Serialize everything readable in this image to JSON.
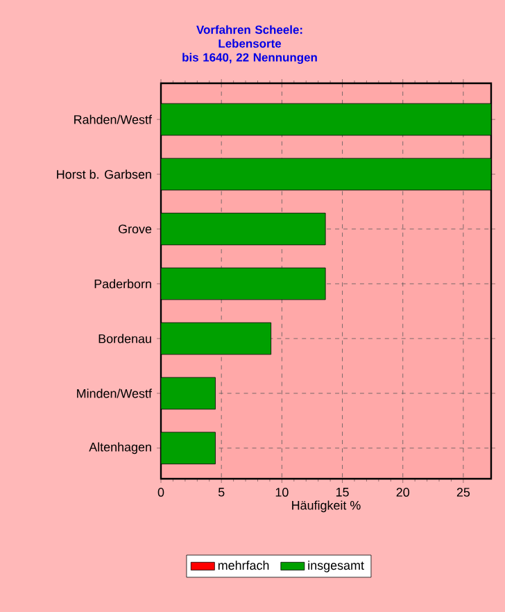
{
  "chart_data": {
    "type": "bar",
    "orientation": "horizontal",
    "stacked": true,
    "title": "Vorfahren Scheele: Lebensorte",
    "subtitle": "bis 1640, 22 Nennungen",
    "xlabel": "Häufigkeit %",
    "categories": [
      "Rahden/Westf",
      "Horst b. Garbsen",
      "Grove",
      "Paderborn",
      "Bordenau",
      "Minden/Westf",
      "Altenhagen"
    ],
    "series": [
      {
        "name": "mehrfach",
        "color": "#ff0000",
        "values": [
          0,
          0,
          0,
          0,
          0,
          0,
          0
        ]
      },
      {
        "name": "insgesamt",
        "color": "#00a000",
        "values": [
          27.3,
          27.3,
          13.6,
          13.6,
          9.1,
          4.5,
          4.5
        ]
      }
    ],
    "xlim": [
      0,
      27.3
    ],
    "xticks": [
      0,
      5,
      10,
      15,
      20,
      25
    ],
    "grid": true,
    "legend": "bottom"
  }
}
